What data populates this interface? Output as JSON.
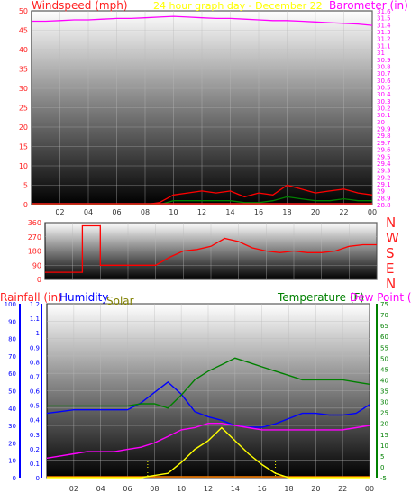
{
  "panel1": {
    "title": "24 hour graph day - December 22",
    "left_label": "Windspeed (mph)",
    "right_label": "Barometer (in)"
  },
  "panel2": {
    "compass": [
      "N",
      "W",
      "S",
      "E",
      "N"
    ]
  },
  "panel3": {
    "left_label_1": "Rainfall (in)",
    "left_label_2": "Humidity",
    "left_label_3": "Solar",
    "right_label": "Temperature (F)",
    "right_label_2": "Dew Point (F)"
  },
  "x_tick_labels": [
    "02",
    "04",
    "06",
    "08",
    "10",
    "12",
    "14",
    "16",
    "18",
    "20",
    "22",
    "00"
  ],
  "colors": {
    "wind_axis": "#ff2020",
    "baro_axis": "#ff00ff",
    "title": "#ffff00",
    "humidity_axis": "#0000ff",
    "temperature_axis": "#008000",
    "solar": "#808000",
    "rain": "#ff0000"
  },
  "chart_data": [
    {
      "type": "line",
      "title": "24 hour graph day - December 22",
      "x": [
        0,
        1,
        2,
        3,
        4,
        5,
        6,
        7,
        8,
        9,
        10,
        11,
        12,
        13,
        14,
        15,
        16,
        17,
        18,
        19,
        20,
        21,
        22,
        23,
        24
      ],
      "x_tick_labels": [
        "02",
        "04",
        "06",
        "08",
        "10",
        "12",
        "14",
        "16",
        "18",
        "20",
        "22",
        "00"
      ],
      "y_left": {
        "label": "Windspeed (mph)",
        "ylim": [
          0,
          50
        ],
        "ticks": [
          0,
          5,
          10,
          15,
          20,
          25,
          30,
          35,
          40,
          45,
          50
        ]
      },
      "y_right": {
        "label": "Barometer (in)",
        "ylim": [
          28.8,
          31.6
        ],
        "ticks": [
          "28.8",
          "28.9",
          "29",
          "29.1",
          "29.2",
          "29.3",
          "29.4",
          "29.5",
          "29.6",
          "29.7",
          "29.8",
          "29.9",
          "30",
          "30.1",
          "30.2",
          "30.3",
          "30.4",
          "30.5",
          "30.6",
          "30.7",
          "30.8",
          "30.9",
          "31",
          "31.1",
          "31.2",
          "31.3",
          "31.4",
          "31.5",
          "31.6"
        ]
      },
      "series": [
        {
          "axis": "right",
          "color": "#ff00ff",
          "values": [
            31.45,
            31.45,
            31.46,
            31.47,
            31.47,
            31.48,
            31.49,
            31.49,
            31.5,
            31.51,
            31.52,
            31.51,
            31.5,
            31.49,
            31.49,
            31.48,
            31.47,
            31.46,
            31.46,
            31.45,
            31.44,
            31.43,
            31.42,
            31.41,
            31.39
          ]
        },
        {
          "axis": "left",
          "color": "#ff0000",
          "values": [
            0,
            0,
            0,
            0,
            0,
            0,
            0,
            0,
            0,
            0.5,
            2.5,
            3,
            3.5,
            3,
            3.5,
            2,
            3,
            2.5,
            5,
            4,
            3,
            3.5,
            4,
            3,
            2.5
          ]
        },
        {
          "axis": "left",
          "color": "#008000",
          "values": [
            0,
            0,
            0,
            0,
            0,
            0,
            0,
            0,
            0,
            0,
            1,
            1,
            1,
            1,
            1,
            0.5,
            0.5,
            1,
            2,
            1.5,
            1,
            1,
            1.5,
            1,
            1
          ]
        }
      ]
    },
    {
      "type": "line",
      "x": [
        0,
        2.7,
        2.7,
        4,
        4,
        7.5,
        8,
        9,
        10,
        11,
        12,
        13,
        14,
        15,
        16,
        17,
        18,
        19,
        20,
        21,
        22,
        23,
        24
      ],
      "y": {
        "ylim": [
          0,
          360
        ],
        "ticks": [
          0,
          90,
          180,
          270,
          360
        ]
      },
      "series": [
        {
          "color": "#ff0000",
          "values": [
            45,
            45,
            340,
            340,
            90,
            90,
            90,
            140,
            180,
            190,
            210,
            260,
            240,
            200,
            180,
            170,
            180,
            170,
            170,
            180,
            210,
            220,
            220
          ]
        }
      ]
    },
    {
      "type": "line",
      "x": [
        0,
        1,
        2,
        3,
        4,
        5,
        6,
        7,
        8,
        9,
        10,
        11,
        12,
        13,
        14,
        15,
        16,
        17,
        18,
        19,
        20,
        21,
        22,
        23,
        24
      ],
      "x_tick_labels": [
        "02",
        "04",
        "06",
        "08",
        "10",
        "12",
        "14",
        "16",
        "18",
        "20",
        "22",
        "00"
      ],
      "y_rain": {
        "label": "Rainfall (in)",
        "ylim": [
          0,
          1.2
        ]
      },
      "y_humidity": {
        "label": "Humidity",
        "ylim": [
          0,
          100
        ],
        "ticks": [
          0,
          10,
          20,
          30,
          40,
          50,
          60,
          70,
          80,
          90,
          100
        ]
      },
      "y_temp": {
        "label": "Temperature (F)",
        "ylim": [
          -5,
          75
        ],
        "ticks": [
          -5,
          0,
          5,
          10,
          15,
          20,
          25,
          30,
          35,
          40,
          45,
          50,
          55,
          60,
          65,
          70,
          75
        ]
      },
      "series": [
        {
          "name": "Humidity",
          "color": "#0000ff",
          "axis": "humidity",
          "values": [
            37,
            38,
            39,
            39,
            39,
            39,
            39,
            43,
            49,
            55,
            48,
            38,
            35,
            33,
            30,
            29,
            29,
            31,
            34,
            37,
            37,
            36,
            36,
            37,
            42
          ]
        },
        {
          "name": "Temperature (F)",
          "color": "#008000",
          "axis": "temp",
          "values": [
            28,
            28,
            28,
            28,
            28,
            28,
            28,
            29,
            29,
            27,
            33,
            40,
            44,
            47,
            50,
            48,
            46,
            44,
            42,
            40,
            40,
            40,
            40,
            39,
            38
          ]
        },
        {
          "name": "Dew Point (F)",
          "color": "#ff00ff",
          "axis": "temp",
          "values": [
            4,
            5,
            6,
            7,
            7,
            7,
            8,
            9,
            11,
            14,
            17,
            18,
            20,
            20,
            19,
            18,
            17,
            17,
            17,
            17,
            17,
            17,
            17,
            18,
            19
          ]
        },
        {
          "name": "Solar",
          "color": "#ffff00",
          "axis": "temp",
          "values": [
            -5,
            -5,
            -5,
            -5,
            -5,
            -5,
            -5,
            -5,
            -4,
            -3,
            2,
            8,
            12,
            18,
            12,
            6,
            1,
            -3,
            -5,
            -5,
            -5,
            -5,
            -5,
            -5,
            -5
          ]
        }
      ]
    }
  ]
}
